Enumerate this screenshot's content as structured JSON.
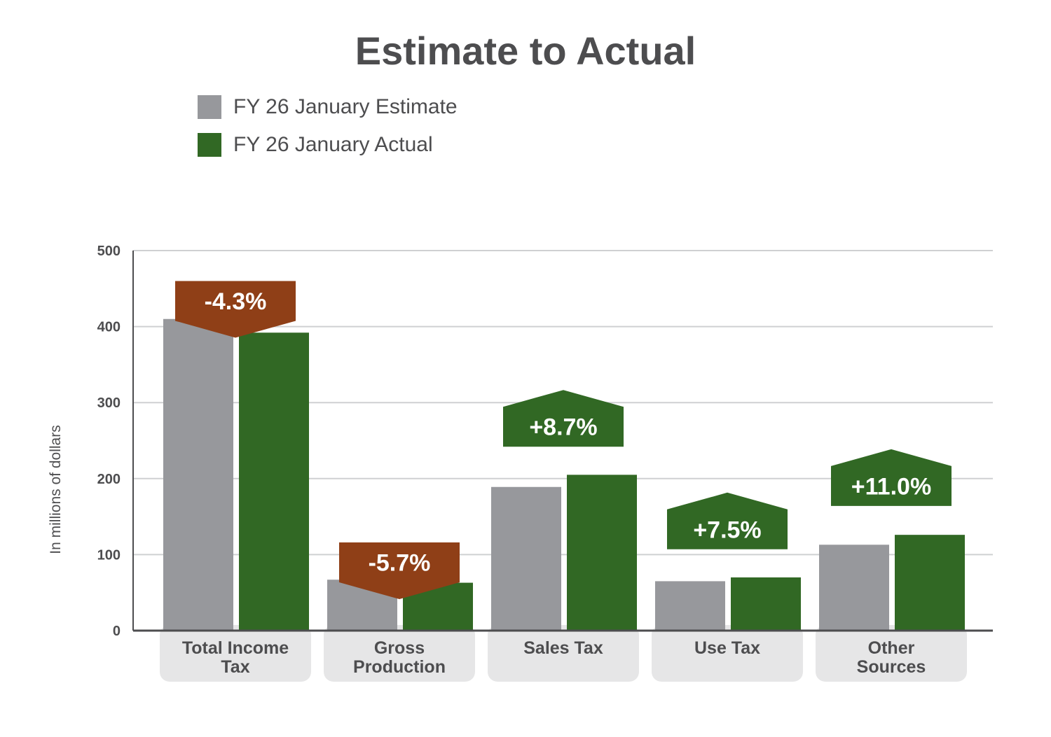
{
  "chart_data": {
    "type": "bar",
    "title": "Estimate to Actual",
    "ylabel": "In millions of dollars",
    "xlabel": "",
    "ylim": [
      0,
      500
    ],
    "yticks": [
      0,
      100,
      200,
      300,
      400,
      500
    ],
    "grid": true,
    "legend_position": "top-left",
    "categories": [
      [
        "Total Income",
        "Tax"
      ],
      [
        "Gross",
        "Production"
      ],
      [
        "Sales Tax"
      ],
      [
        "Use Tax"
      ],
      [
        "Other",
        "Sources"
      ]
    ],
    "series": [
      {
        "name": "FY 26 January Estimate",
        "color": "#97989c",
        "values": [
          410,
          67,
          189,
          65,
          113
        ]
      },
      {
        "name": "FY 26 January Actual",
        "color": "#316824",
        "values": [
          392,
          63,
          205,
          70,
          126
        ]
      }
    ],
    "annotations": [
      {
        "category_index": 0,
        "label": "-4.3%",
        "direction": "down",
        "color": "#8f3f17",
        "level": 460
      },
      {
        "category_index": 1,
        "label": "-5.7%",
        "direction": "down",
        "color": "#8f3f17",
        "level": 116
      },
      {
        "category_index": 2,
        "label": "+8.7%",
        "direction": "up",
        "color": "#316824",
        "level": 242
      },
      {
        "category_index": 3,
        "label": "+7.5%",
        "direction": "up",
        "color": "#316824",
        "level": 107
      },
      {
        "category_index": 4,
        "label": "+11.0%",
        "direction": "up",
        "color": "#316824",
        "level": 164
      }
    ]
  }
}
